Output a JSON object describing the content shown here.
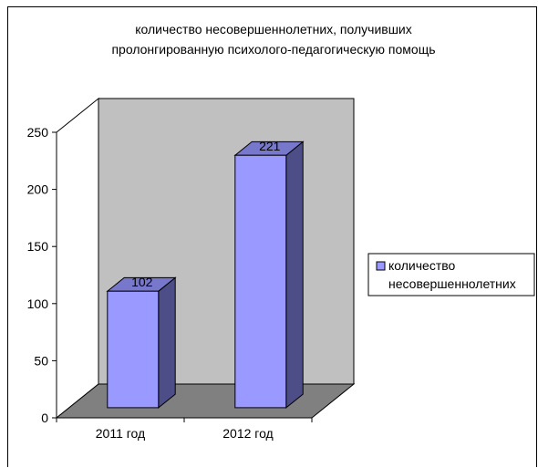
{
  "chart_data": {
    "type": "bar",
    "title_lines": [
      "количество несовершеннолетних, получивших",
      "пролонгированную психолого-педагогическую помощь"
    ],
    "categories": [
      "2011 год",
      "2012 год"
    ],
    "series": [
      {
        "name": "количество несовершеннолетних",
        "values": [
          102,
          221
        ]
      }
    ],
    "legend_lines": [
      "количество",
      "несовершеннолетних"
    ],
    "ylim": [
      0,
      250
    ],
    "yticks": [
      0,
      50,
      100,
      150,
      200,
      250
    ],
    "grid": false,
    "legend_position": "right",
    "three_d": true,
    "colors": {
      "bar_front": "#9999ff",
      "bar_side": "#4d4d88",
      "bar_top": "#7777cc",
      "back_wall": "#c0c0c0",
      "floor": "#808080"
    }
  }
}
